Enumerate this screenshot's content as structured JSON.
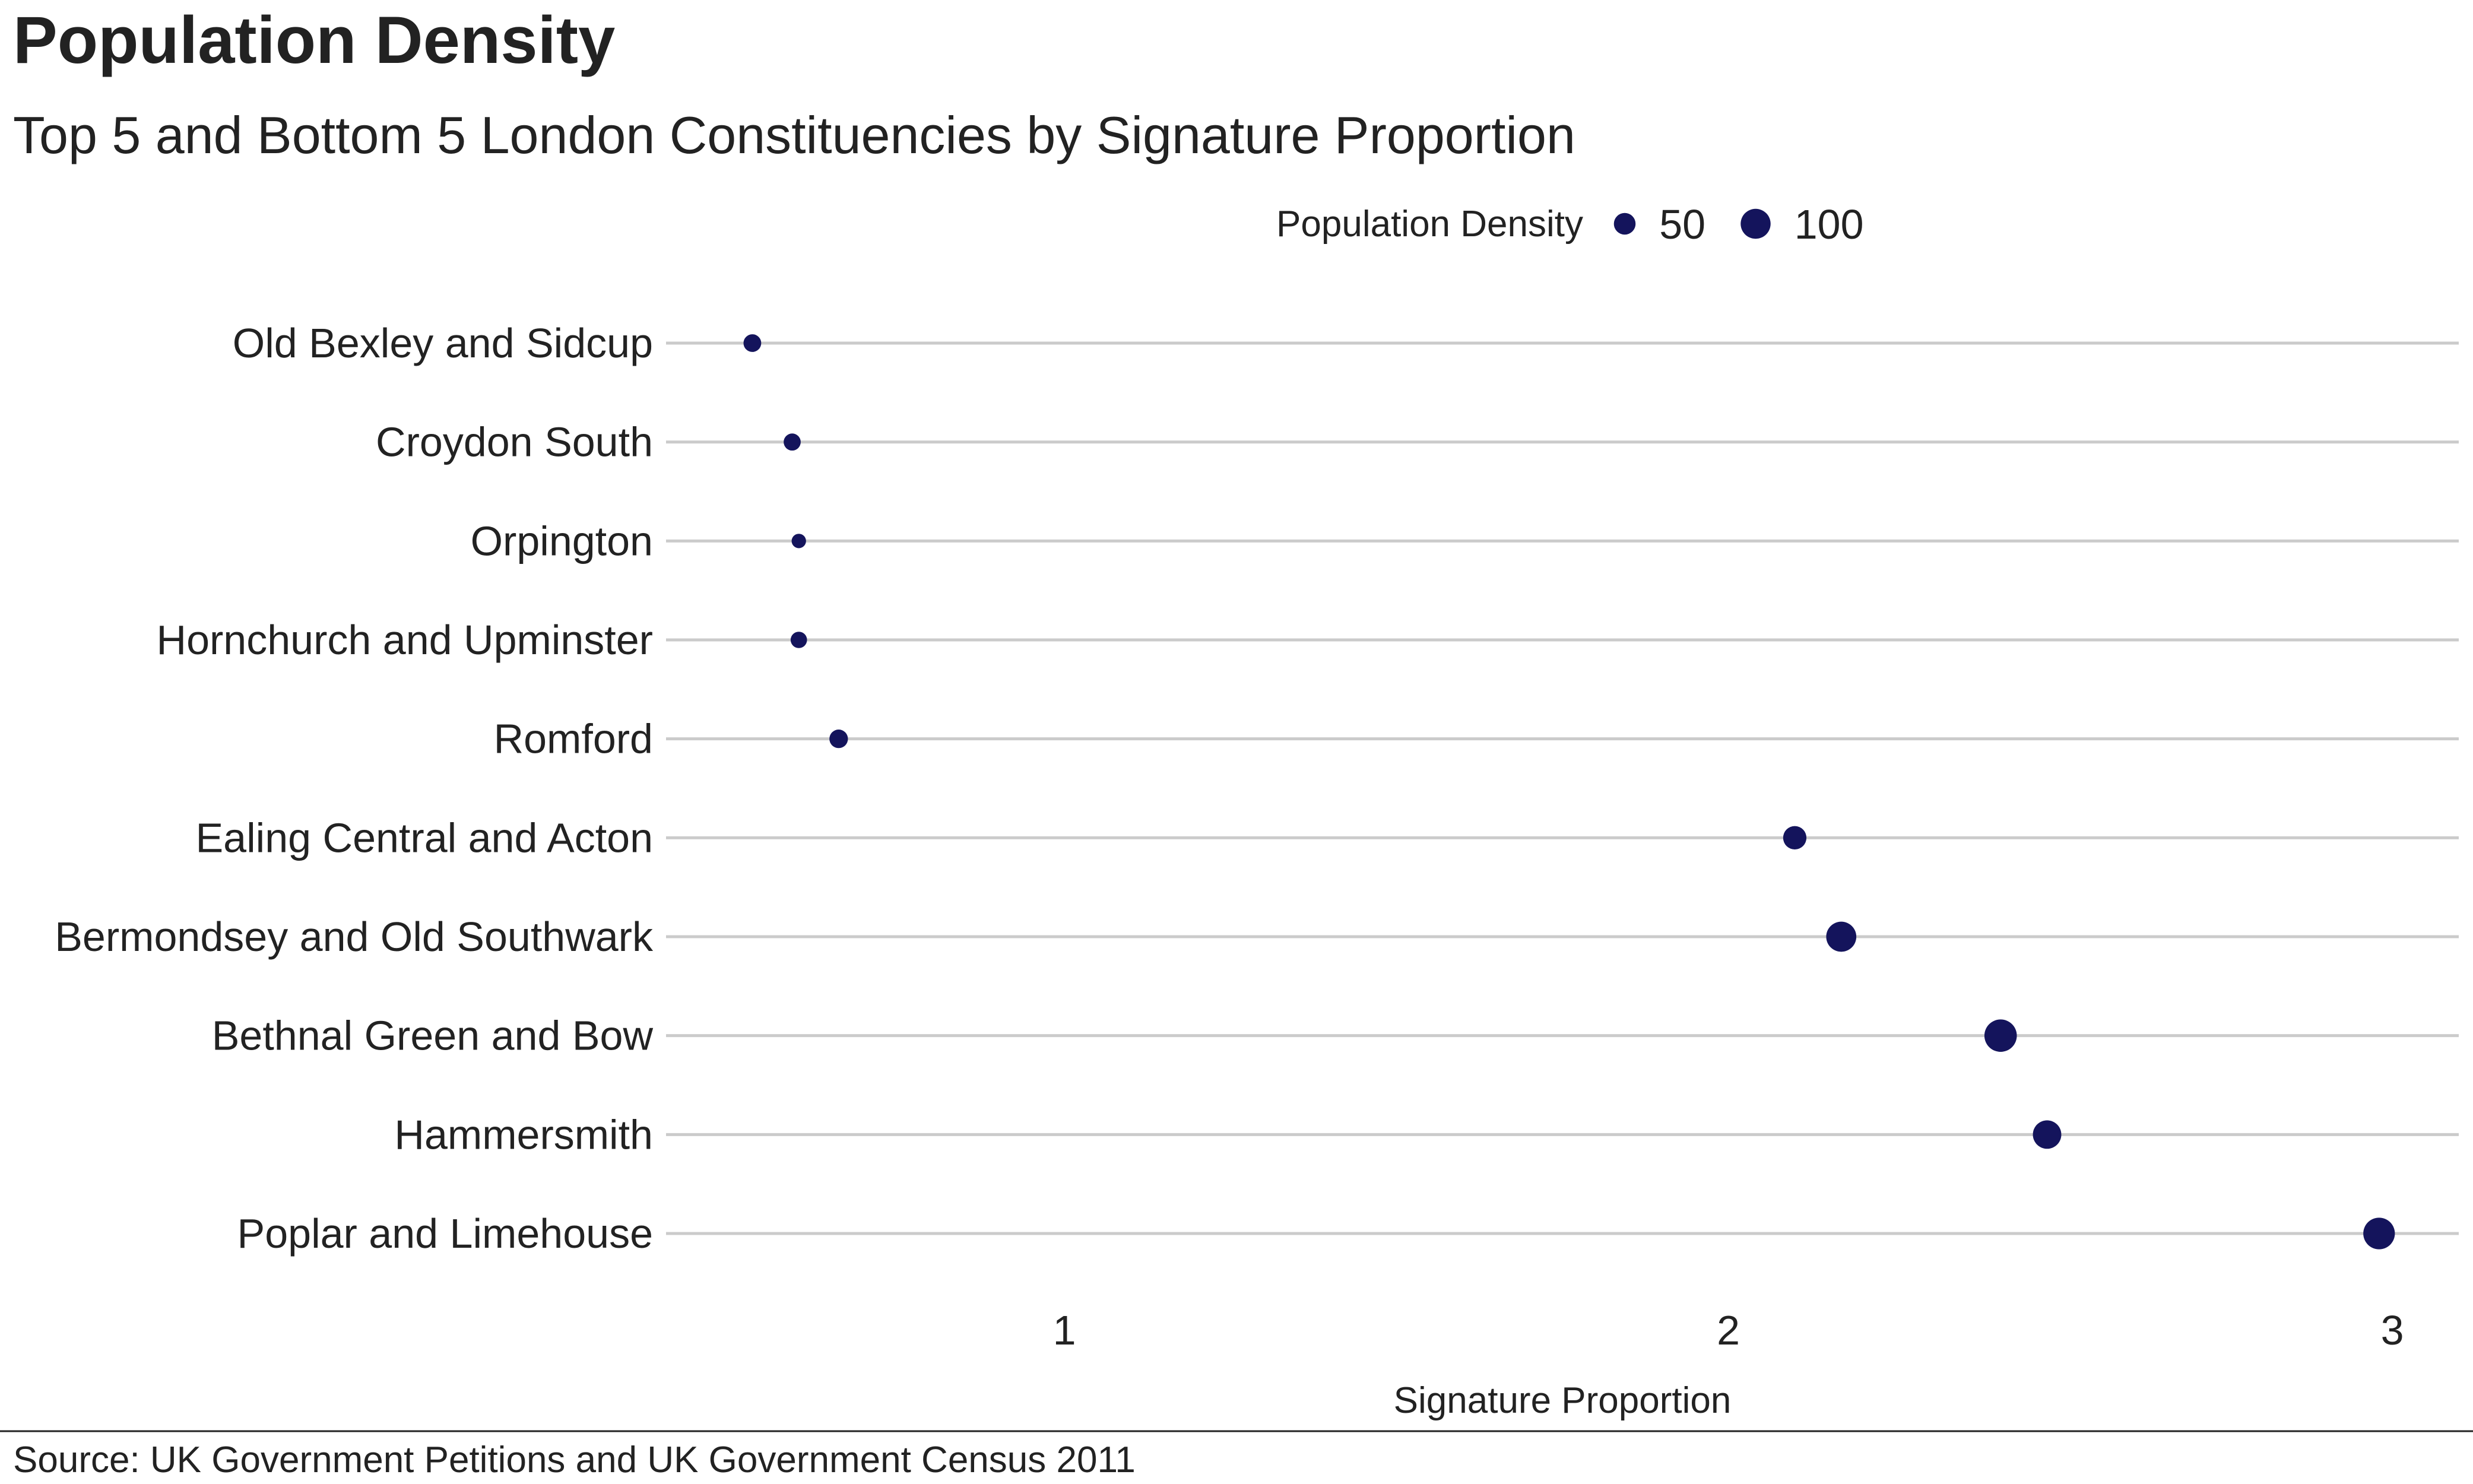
{
  "chart_data": {
    "type": "scatter",
    "title": "Population Density",
    "subtitle": "Top 5 and Bottom 5 London Constituencies by Signature Proportion",
    "xlabel": "Signature Proportion",
    "ylabel": "",
    "xlim": [
      0.4,
      3.1
    ],
    "xticks": [
      1,
      2,
      3
    ],
    "grid": "horizontal",
    "legend": {
      "title": "Population Density",
      "placement": "top-right",
      "entries": [
        {
          "label": "50",
          "value": 50
        },
        {
          "label": "100",
          "value": 100
        }
      ]
    },
    "size_range": [
      5,
      120
    ],
    "color": "#14145c",
    "categories": [
      "Old Bexley and Sidcup",
      "Croydon South",
      "Orpington",
      "Hornchurch and Upminster",
      "Romford",
      "Ealing Central and Acton",
      "Bermondsey and Old Southwark",
      "Bethnal Green and Bow",
      "Hammersmith",
      "Poplar and Limehouse"
    ],
    "points": [
      {
        "category": "Old Bexley and Sidcup",
        "x": 0.53,
        "size": 26
      },
      {
        "category": "Croydon South",
        "x": 0.59,
        "size": 22
      },
      {
        "category": "Orpington",
        "x": 0.6,
        "size": 6
      },
      {
        "category": "Hornchurch and Upminster",
        "x": 0.6,
        "size": 18
      },
      {
        "category": "Romford",
        "x": 0.66,
        "size": 31
      },
      {
        "category": "Ealing Central and Acton",
        "x": 2.1,
        "size": 60
      },
      {
        "category": "Bermondsey and Old Southwark",
        "x": 2.17,
        "size": 101
      },
      {
        "category": "Bethnal Green and Bow",
        "x": 2.41,
        "size": 115
      },
      {
        "category": "Hammersmith",
        "x": 2.48,
        "size": 91
      },
      {
        "category": "Poplar and Limehouse",
        "x": 2.98,
        "size": 110
      }
    ]
  },
  "source": "Source: UK Government Petitions and UK Government Census 2011"
}
